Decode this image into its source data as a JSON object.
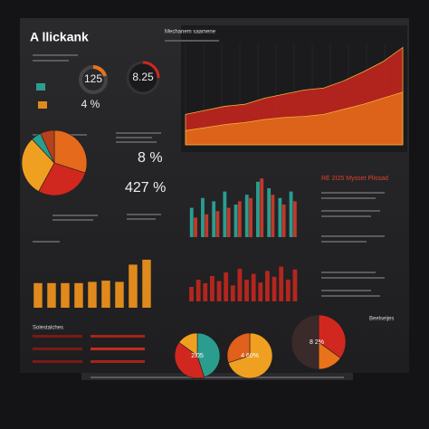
{
  "texts": {
    "title": "A llickank",
    "subtitle": "Mechanem saamene",
    "gauge_a": "125",
    "gauge_b": "8.25",
    "gauge_c": "4 %",
    "stat_a": "8 %",
    "stat_b": "427 %",
    "side_title": "RE 2I25 Mysset Plissad",
    "donut_a": "2I05",
    "donut_b": "4 60%",
    "donut_c": "8 2%",
    "corner_title": "Beelseijes",
    "list_title": "Solestalches"
  },
  "chart_data": [
    {
      "type": "area",
      "ylim": [
        0,
        100
      ],
      "series": [
        {
          "color": "#d7261e",
          "values": [
            30,
            34,
            38,
            40,
            46,
            50,
            54,
            56,
            63,
            72,
            82,
            96
          ]
        },
        {
          "color": "#e8731a",
          "values": [
            14,
            17,
            20,
            22,
            25,
            27,
            28,
            30,
            35,
            40,
            46,
            52
          ]
        }
      ]
    },
    {
      "type": "pie",
      "values": [
        30,
        28,
        30,
        5,
        7
      ],
      "colors": [
        "#e66a1c",
        "#d0281e",
        "#f0a020",
        "#2a9d8f",
        "#b8401a"
      ]
    },
    {
      "type": "bar",
      "ylim": [
        0,
        100
      ],
      "series": [
        {
          "color": "#2a9d8f",
          "values": [
            45,
            60,
            55,
            70,
            50,
            65,
            85,
            75,
            60,
            70
          ]
        },
        {
          "color": "#c0392b",
          "values": [
            30,
            35,
            40,
            45,
            55,
            60,
            90,
            65,
            50,
            55
          ]
        }
      ]
    },
    {
      "type": "bar",
      "ylim": [
        0,
        100
      ],
      "color": "#e08a1e",
      "values": [
        40,
        40,
        40,
        40,
        42,
        44,
        42,
        70,
        78
      ]
    },
    {
      "type": "bar",
      "ylim": [
        0,
        60
      ],
      "color": "#b3261e",
      "values": [
        20,
        30,
        25,
        35,
        28,
        40,
        22,
        45,
        30,
        38,
        26,
        42,
        34,
        48,
        30,
        44
      ]
    },
    {
      "type": "pie",
      "values": [
        45,
        40,
        15
      ],
      "colors": [
        "#2a9d8f",
        "#d0281e",
        "#f0a020"
      ]
    },
    {
      "type": "pie",
      "values": [
        70,
        30
      ],
      "colors": [
        "#f0a020",
        "#e0601c"
      ]
    },
    {
      "type": "pie",
      "values": [
        35,
        15,
        50
      ],
      "colors": [
        "#d0281e",
        "#e8731a",
        "#3a2a2a"
      ]
    }
  ]
}
